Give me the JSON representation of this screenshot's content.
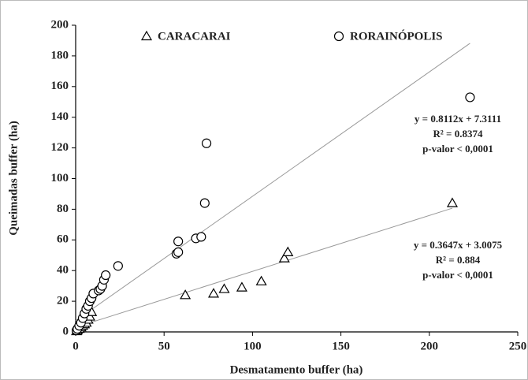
{
  "chart_data": {
    "type": "scatter",
    "xlabel": "Desmatamento buffer (ha)",
    "ylabel": "Queimadas buffer (ha)",
    "xlim": [
      0,
      250
    ],
    "xticks": [
      0,
      50,
      100,
      150,
      200,
      250
    ],
    "ylim": [
      0,
      200
    ],
    "yticks": [
      0,
      20,
      40,
      60,
      80,
      100,
      120,
      140,
      160,
      180,
      200
    ],
    "series": [
      {
        "name": "CARACARAI",
        "color": "#000000",
        "marker": "triangle",
        "x": [
          0.5,
          1,
          2,
          3,
          4,
          5,
          6,
          7,
          8,
          9,
          62,
          78,
          84,
          94,
          105,
          118,
          120,
          213
        ],
        "values": [
          0.5,
          1,
          2,
          3,
          4,
          5,
          6,
          8,
          10,
          13,
          24,
          25,
          28,
          29,
          33,
          48,
          52,
          84
        ]
      },
      {
        "name": "RORAINÓPOLIS",
        "color": "#000000",
        "marker": "circle",
        "x": [
          0.5,
          1,
          2,
          3,
          4,
          5,
          6,
          7,
          8,
          9,
          10,
          13,
          14,
          15,
          16,
          17,
          24,
          57,
          58,
          58,
          68,
          71,
          73,
          74,
          223
        ],
        "values": [
          1,
          2,
          4,
          6,
          9,
          12,
          15,
          17,
          20,
          22,
          25,
          27,
          28,
          30,
          34,
          37,
          43,
          51,
          52,
          59,
          61,
          62,
          84,
          123,
          153
        ]
      }
    ],
    "trendlines": [
      {
        "slope": 0.8112,
        "intercept": 7.3111,
        "x_end": 223,
        "color": "#999999",
        "equation": "y = 0.8112x + 7.3111",
        "r2": "R² = 0.8374",
        "p": "p-valor < 0,0001"
      },
      {
        "slope": 0.3647,
        "intercept": 3.0075,
        "x_end": 213,
        "color": "#999999",
        "equation": "y = 0.3647x + 3.0075",
        "r2": "R² = 0.884",
        "p": "p-valor < 0,0001"
      }
    ]
  }
}
